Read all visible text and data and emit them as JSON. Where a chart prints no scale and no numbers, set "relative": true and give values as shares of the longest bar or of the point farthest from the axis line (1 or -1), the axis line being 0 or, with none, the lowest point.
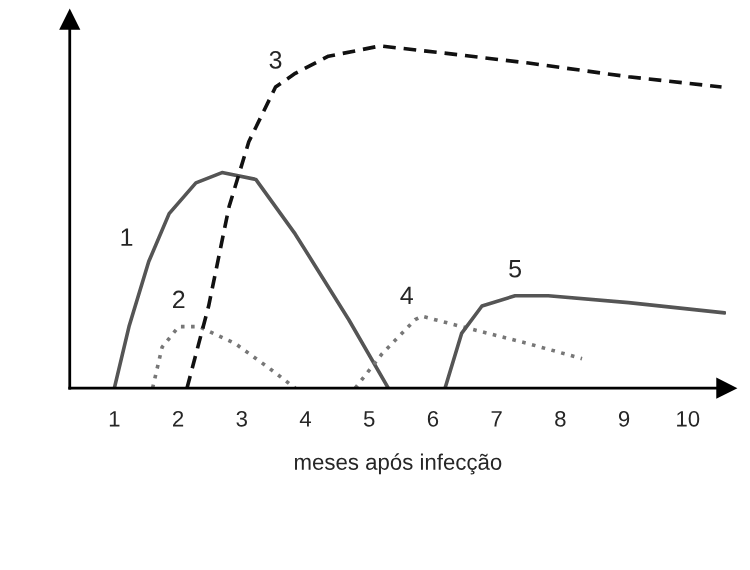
{
  "chart_data": {
    "type": "line",
    "relative": true,
    "xlabel": "meses após infecção",
    "xlim": [
      0.3,
      10.6
    ],
    "xticks": [
      1,
      2,
      3,
      4,
      5,
      6,
      7,
      8,
      9,
      10
    ],
    "tick_labels": "x",
    "grid": false,
    "legend": false,
    "marker": "none",
    "series": [
      {
        "name": "1",
        "color": "#555555",
        "line_style": "solid",
        "x": [
          1.0,
          1.23,
          1.54,
          1.86,
          2.28,
          2.69,
          3.22,
          3.84,
          4.16,
          4.68,
          5.3
        ],
        "values": [
          0,
          0.18,
          0.37,
          0.51,
          0.6,
          0.63,
          0.61,
          0.45,
          0.355,
          0.2,
          0
        ]
      },
      {
        "name": "2",
        "color": "#777777",
        "line_style": "dotted",
        "x": [
          1.6,
          1.75,
          2.01,
          2.33,
          2.9,
          3.42,
          3.84
        ],
        "values": [
          0,
          0.12,
          0.18,
          0.18,
          0.13,
          0.06,
          0
        ]
      },
      {
        "name": "3",
        "color": "#111111",
        "line_style": "dashed",
        "x": [
          2.14,
          2.48,
          2.8,
          3.11,
          3.53,
          3.84,
          4.36,
          5.17,
          6.14,
          7.5,
          9.07,
          10.53
        ],
        "values": [
          0,
          0.24,
          0.53,
          0.72,
          0.88,
          0.92,
          0.97,
          1.0,
          0.98,
          0.95,
          0.91,
          0.88
        ]
      },
      {
        "name": "4",
        "color": "#777777",
        "line_style": "dotted",
        "x": [
          4.78,
          5.2,
          5.72,
          5.83,
          6.45,
          7.5,
          8.34
        ],
        "values": [
          0,
          0.1,
          0.2,
          0.21,
          0.18,
          0.13,
          0.086
        ]
      },
      {
        "name": "5",
        "color": "#555555",
        "line_style": "solid",
        "x": [
          6.19,
          6.45,
          6.77,
          7.29,
          7.81,
          9.07,
          10.58
        ],
        "values": [
          0,
          0.16,
          0.24,
          0.27,
          0.27,
          0.25,
          0.22
        ]
      }
    ]
  }
}
